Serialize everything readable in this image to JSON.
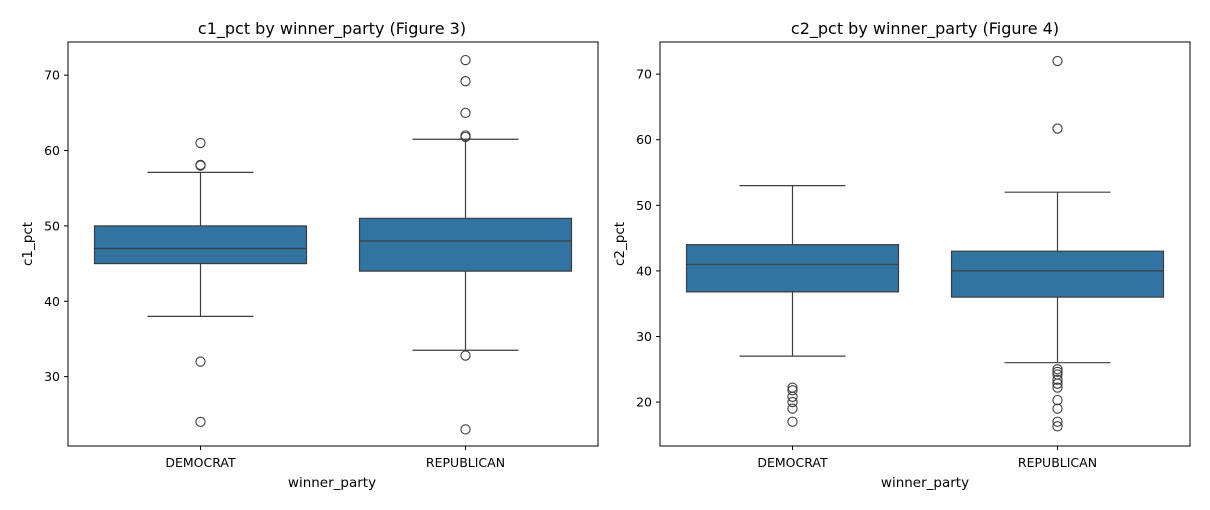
{
  "chart_data": [
    {
      "type": "box",
      "title": "c1_pct by winner_party (Figure 3)",
      "xlabel": "winner_party",
      "ylabel": "c1_pct",
      "categories": [
        "DEMOCRAT",
        "REPUBLICAN"
      ],
      "ylim": [
        20.8,
        74.4
      ],
      "yticks": [
        30,
        40,
        50,
        60,
        70
      ],
      "color": "#3274a1",
      "boxes": [
        {
          "category": "DEMOCRAT",
          "q1": 45.0,
          "median": 47.0,
          "q3": 50.0,
          "whisker_low": 38.0,
          "whisker_high": 57.1,
          "outliers": [
            58.0,
            58.1,
            61.0,
            32.0,
            24.0
          ]
        },
        {
          "category": "REPUBLICAN",
          "q1": 44.0,
          "median": 48.0,
          "q3": 51.0,
          "whisker_low": 33.5,
          "whisker_high": 61.5,
          "outliers": [
            61.8,
            62.0,
            65.0,
            69.2,
            72.0,
            32.8,
            23.0
          ]
        }
      ]
    },
    {
      "type": "box",
      "title": "c2_pct by winner_party (Figure 4)",
      "xlabel": "winner_party",
      "ylabel": "c2_pct",
      "categories": [
        "DEMOCRAT",
        "REPUBLICAN"
      ],
      "ylim": [
        13.3,
        74.9
      ],
      "yticks": [
        20,
        30,
        40,
        50,
        60,
        70
      ],
      "color": "#3274a1",
      "boxes": [
        {
          "category": "DEMOCRAT",
          "q1": 36.8,
          "median": 41.0,
          "q3": 44.0,
          "whisker_low": 27.0,
          "whisker_high": 53.0,
          "outliers": [
            22.2,
            21.8,
            20.8,
            20.0,
            19.0,
            17.0
          ]
        },
        {
          "category": "REPUBLICAN",
          "q1": 36.0,
          "median": 40.0,
          "q3": 43.0,
          "whisker_low": 26.0,
          "whisker_high": 52.0,
          "outliers": [
            61.7,
            72.0,
            25.0,
            24.6,
            24.2,
            23.4,
            22.8,
            22.2,
            20.3,
            19.0,
            17.0,
            16.3
          ]
        }
      ]
    }
  ]
}
